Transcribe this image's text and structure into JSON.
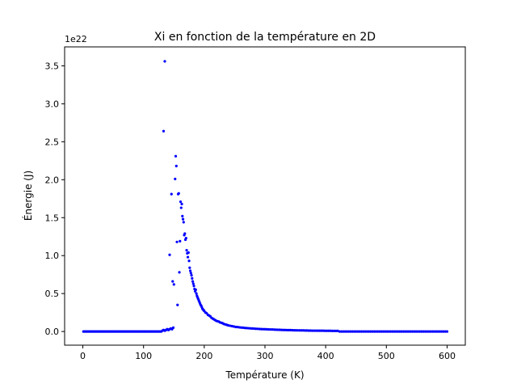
{
  "chart_data": {
    "type": "scatter",
    "title": "Xi en fonction de la température en 2D",
    "xlabel": "Température (K)",
    "ylabel": "Énergie (J)",
    "offset_label": "1e22",
    "xlim": [
      -30,
      630
    ],
    "ylim": [
      -0.18,
      3.75
    ],
    "x_ticks": [
      0,
      100,
      200,
      300,
      400,
      500,
      600
    ],
    "x_tick_labels": [
      "0",
      "100",
      "200",
      "300",
      "400",
      "500",
      "600"
    ],
    "y_ticks": [
      0.0,
      0.5,
      1.0,
      1.5,
      2.0,
      2.5,
      3.0,
      3.5
    ],
    "y_tick_labels": [
      "0.0",
      "0.5",
      "1.0",
      "1.5",
      "2.0",
      "2.5",
      "3.0",
      "3.5"
    ],
    "grid": false,
    "legend": "none",
    "color": "#0000ff",
    "series": [
      {
        "points": [
          [
            1,
            0.0
          ],
          [
            3,
            0.0
          ],
          [
            5,
            0.0
          ],
          [
            7,
            0.0
          ],
          [
            9,
            0.0
          ],
          [
            11,
            0.0
          ],
          [
            13,
            0.0
          ],
          [
            15,
            0.0
          ],
          [
            17,
            0.0
          ],
          [
            19,
            0.0
          ],
          [
            21,
            0.0
          ],
          [
            23,
            0.0
          ],
          [
            25,
            0.0
          ],
          [
            27,
            0.0
          ],
          [
            29,
            0.0
          ],
          [
            31,
            0.0
          ],
          [
            33,
            0.0
          ],
          [
            35,
            0.0
          ],
          [
            37,
            0.0
          ],
          [
            39,
            0.0
          ],
          [
            41,
            0.0
          ],
          [
            43,
            0.0
          ],
          [
            45,
            0.0
          ],
          [
            47,
            0.0
          ],
          [
            49,
            0.0
          ],
          [
            51,
            0.0
          ],
          [
            53,
            0.0
          ],
          [
            55,
            0.0
          ],
          [
            57,
            0.0
          ],
          [
            59,
            0.0
          ],
          [
            61,
            0.0
          ],
          [
            63,
            0.0
          ],
          [
            65,
            0.0
          ],
          [
            67,
            0.0
          ],
          [
            69,
            0.0
          ],
          [
            71,
            0.0
          ],
          [
            73,
            0.0
          ],
          [
            75,
            0.0
          ],
          [
            77,
            0.0
          ],
          [
            79,
            0.0
          ],
          [
            81,
            0.0
          ],
          [
            83,
            0.0
          ],
          [
            85,
            0.0
          ],
          [
            87,
            0.0
          ],
          [
            89,
            0.0
          ],
          [
            91,
            0.0
          ],
          [
            93,
            0.0
          ],
          [
            95,
            0.0
          ],
          [
            97,
            0.0
          ],
          [
            99,
            0.0
          ],
          [
            101,
            0.0
          ],
          [
            103,
            0.0
          ],
          [
            105,
            0.0
          ],
          [
            107,
            0.0
          ],
          [
            109,
            0.0
          ],
          [
            111,
            0.0
          ],
          [
            113,
            0.0
          ],
          [
            115,
            0.0
          ],
          [
            117,
            0.0
          ],
          [
            119,
            0.0
          ],
          [
            121,
            0.0
          ],
          [
            123,
            0.0
          ],
          [
            125,
            0.0
          ],
          [
            127,
            0.0
          ],
          [
            129,
            0.0
          ],
          [
            131,
            0.01
          ],
          [
            133,
            0.02
          ],
          [
            135,
            0.01
          ],
          [
            137,
            0.02
          ],
          [
            139,
            0.03
          ],
          [
            141,
            0.02
          ],
          [
            143,
            0.03
          ],
          [
            145,
            0.04
          ],
          [
            147,
            0.03
          ],
          [
            149,
            0.05
          ],
          [
            133,
            2.64
          ],
          [
            135,
            3.56
          ],
          [
            143,
            1.01
          ],
          [
            146,
            1.81
          ],
          [
            148,
            0.66
          ],
          [
            150,
            0.62
          ],
          [
            152,
            2.01
          ],
          [
            153,
            2.31
          ],
          [
            154,
            2.18
          ],
          [
            155,
            1.18
          ],
          [
            156,
            0.35
          ],
          [
            157,
            1.81
          ],
          [
            158,
            1.82
          ],
          [
            159,
            0.78
          ],
          [
            160,
            1.19
          ],
          [
            161,
            1.71
          ],
          [
            162,
            1.63
          ],
          [
            163,
            1.68
          ],
          [
            164,
            1.52
          ],
          [
            165,
            1.48
          ],
          [
            166,
            1.44
          ],
          [
            167,
            1.27
          ],
          [
            168,
            1.29
          ],
          [
            169,
            1.21
          ],
          [
            170,
            1.23
          ],
          [
            171,
            1.07
          ],
          [
            172,
            1.03
          ],
          [
            173,
            0.98
          ],
          [
            174,
            1.04
          ],
          [
            175,
            0.93
          ],
          [
            176,
            0.84
          ],
          [
            177,
            0.8
          ],
          [
            178,
            0.77
          ],
          [
            179,
            0.74
          ],
          [
            180,
            0.7
          ],
          [
            181,
            0.66
          ],
          [
            182,
            0.63
          ],
          [
            183,
            0.6
          ],
          [
            184,
            0.56
          ],
          [
            185,
            0.53
          ],
          [
            186,
            0.55
          ],
          [
            187,
            0.5
          ],
          [
            188,
            0.47
          ],
          [
            189,
            0.45
          ],
          [
            190,
            0.43
          ],
          [
            191,
            0.41
          ],
          [
            192,
            0.39
          ],
          [
            193,
            0.37
          ],
          [
            194,
            0.35
          ],
          [
            195,
            0.34
          ],
          [
            196,
            0.32
          ],
          [
            197,
            0.3
          ],
          [
            198,
            0.29
          ],
          [
            199,
            0.28
          ],
          [
            200,
            0.27
          ],
          [
            202,
            0.25
          ],
          [
            204,
            0.24
          ],
          [
            206,
            0.22
          ],
          [
            208,
            0.21
          ],
          [
            210,
            0.2
          ],
          [
            212,
            0.18
          ],
          [
            214,
            0.17
          ],
          [
            216,
            0.16
          ],
          [
            218,
            0.15
          ],
          [
            220,
            0.14
          ],
          [
            222,
            0.135
          ],
          [
            224,
            0.13
          ],
          [
            226,
            0.12
          ],
          [
            228,
            0.115
          ],
          [
            230,
            0.11
          ],
          [
            232,
            0.1
          ],
          [
            234,
            0.095
          ],
          [
            236,
            0.09
          ],
          [
            238,
            0.085
          ],
          [
            240,
            0.08
          ],
          [
            243,
            0.075
          ],
          [
            246,
            0.07
          ],
          [
            249,
            0.065
          ],
          [
            252,
            0.06
          ],
          [
            255,
            0.058
          ],
          [
            258,
            0.055
          ],
          [
            261,
            0.052
          ],
          [
            264,
            0.05
          ],
          [
            267,
            0.047
          ],
          [
            270,
            0.045
          ],
          [
            273,
            0.043
          ],
          [
            276,
            0.041
          ],
          [
            279,
            0.04
          ],
          [
            282,
            0.038
          ],
          [
            285,
            0.036
          ],
          [
            288,
            0.035
          ],
          [
            291,
            0.033
          ],
          [
            294,
            0.032
          ],
          [
            297,
            0.031
          ],
          [
            300,
            0.03
          ],
          [
            303,
            0.029
          ],
          [
            306,
            0.028
          ],
          [
            309,
            0.027
          ],
          [
            312,
            0.026
          ],
          [
            315,
            0.025
          ],
          [
            318,
            0.024
          ],
          [
            321,
            0.023
          ],
          [
            324,
            0.022
          ],
          [
            327,
            0.021
          ],
          [
            330,
            0.02
          ],
          [
            333,
            0.02
          ],
          [
            336,
            0.019
          ],
          [
            339,
            0.018
          ],
          [
            342,
            0.018
          ],
          [
            345,
            0.017
          ],
          [
            348,
            0.016
          ],
          [
            351,
            0.016
          ],
          [
            354,
            0.015
          ],
          [
            357,
            0.015
          ],
          [
            360,
            0.014
          ],
          [
            363,
            0.014
          ],
          [
            366,
            0.013
          ],
          [
            369,
            0.013
          ],
          [
            372,
            0.012
          ],
          [
            375,
            0.012
          ],
          [
            378,
            0.011
          ],
          [
            381,
            0.011
          ],
          [
            384,
            0.011
          ],
          [
            387,
            0.01
          ],
          [
            390,
            0.01
          ],
          [
            393,
            0.01
          ],
          [
            396,
            0.01
          ],
          [
            399,
            0.009
          ],
          [
            402,
            0.009
          ],
          [
            405,
            0.009
          ],
          [
            408,
            0.009
          ],
          [
            411,
            0.008
          ],
          [
            414,
            0.008
          ],
          [
            417,
            0.008
          ],
          [
            420,
            0.008
          ],
          [
            423,
            0.0
          ],
          [
            426,
            0.0
          ],
          [
            429,
            0.0
          ],
          [
            432,
            0.0
          ],
          [
            435,
            0.0
          ],
          [
            438,
            0.0
          ],
          [
            441,
            0.0
          ],
          [
            444,
            0.0
          ],
          [
            447,
            0.0
          ],
          [
            450,
            0.0
          ],
          [
            453,
            0.0
          ],
          [
            456,
            0.0
          ],
          [
            459,
            0.0
          ],
          [
            462,
            0.0
          ],
          [
            465,
            0.0
          ],
          [
            468,
            0.0
          ],
          [
            471,
            0.0
          ],
          [
            474,
            0.0
          ],
          [
            477,
            0.0
          ],
          [
            480,
            0.0
          ],
          [
            483,
            0.0
          ],
          [
            486,
            0.0
          ],
          [
            489,
            0.0
          ],
          [
            492,
            0.0
          ],
          [
            495,
            0.0
          ],
          [
            498,
            0.0
          ],
          [
            501,
            0.0
          ],
          [
            504,
            0.0
          ],
          [
            507,
            0.0
          ],
          [
            510,
            0.0
          ],
          [
            513,
            0.0
          ],
          [
            516,
            0.0
          ],
          [
            519,
            0.0
          ],
          [
            522,
            0.0
          ],
          [
            525,
            0.0
          ],
          [
            528,
            0.0
          ],
          [
            531,
            0.0
          ],
          [
            534,
            0.0
          ],
          [
            537,
            0.0
          ],
          [
            540,
            0.0
          ],
          [
            543,
            0.0
          ],
          [
            546,
            0.0
          ],
          [
            549,
            0.0
          ],
          [
            552,
            0.0
          ],
          [
            555,
            0.0
          ],
          [
            558,
            0.0
          ],
          [
            561,
            0.0
          ],
          [
            564,
            0.0
          ],
          [
            567,
            0.0
          ],
          [
            570,
            0.0
          ],
          [
            573,
            0.0
          ],
          [
            576,
            0.0
          ],
          [
            579,
            0.0
          ],
          [
            582,
            0.0
          ],
          [
            585,
            0.0
          ],
          [
            588,
            0.0
          ],
          [
            591,
            0.0
          ],
          [
            594,
            0.0
          ],
          [
            597,
            0.0
          ],
          [
            600,
            0.0
          ]
        ]
      }
    ]
  }
}
